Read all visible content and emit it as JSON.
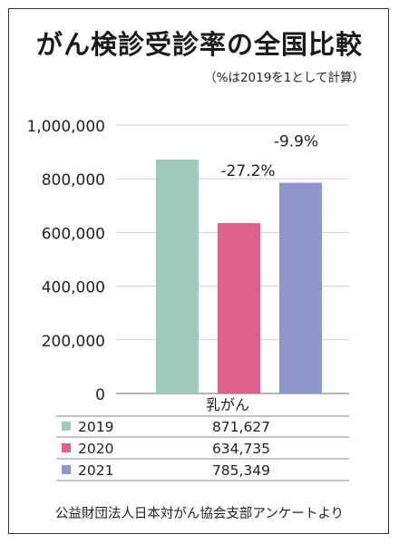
{
  "title": "がん検診受診率の全国比較",
  "subtitle": "（%は2019を1として計算）",
  "source": "公益財団法人日本対がん協会支部アンケートより",
  "chart_data": {
    "type": "bar",
    "categories": [
      "乳がん"
    ],
    "series": [
      {
        "name": "2019",
        "values": [
          871627
        ],
        "color": "#9fcbbe",
        "label": ""
      },
      {
        "name": "2020",
        "values": [
          634735
        ],
        "color": "#e0608b",
        "label": "-27.2%"
      },
      {
        "name": "2021",
        "values": [
          785349
        ],
        "color": "#8e96cb",
        "label": "-9.9%"
      }
    ],
    "ylim": [
      0,
      1000000
    ],
    "yticks": [
      0,
      200000,
      400000,
      600000,
      800000,
      1000000
    ],
    "ytick_labels": [
      "0",
      "200,000",
      "400,000",
      "600,000",
      "800,000",
      "1,000,000"
    ],
    "grid": true,
    "table": [
      {
        "series": "2019",
        "value": "871,627"
      },
      {
        "series": "2020",
        "value": "634,735"
      },
      {
        "series": "2021",
        "value": "785,349"
      }
    ]
  }
}
